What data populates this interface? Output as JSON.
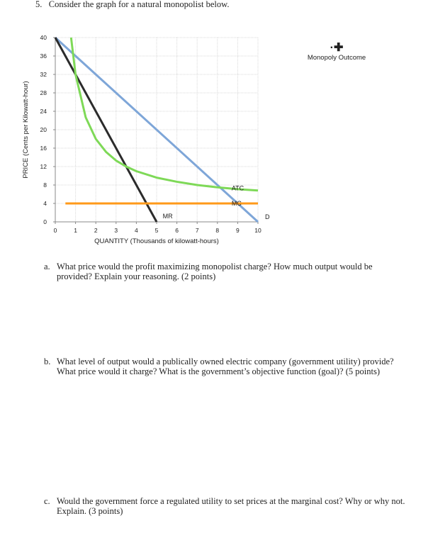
{
  "question": {
    "number": "5.",
    "text": "Consider the graph for a natural monopolist below."
  },
  "legend": {
    "icon": "plus-marker-icon",
    "label": "Monopoly Outcome"
  },
  "parts": [
    {
      "letter": "a.",
      "text": "What price would the profit maximizing monopolist charge? How much output would be provided? Explain your reasoning. (2 points)"
    },
    {
      "letter": "b.",
      "text": "What level of output would a publically owned electric company (government utility) provide? What price would it charge? What is the government’s objective function (goal)? (5 points)"
    },
    {
      "letter": "c.",
      "text": "Would the government force a regulated utility to set prices at the marginal cost? Why or why not. Explain. (3 points)"
    }
  ],
  "chart_data": {
    "type": "line",
    "xlabel": "QUANTITY (Thousands of kilowatt-hours)",
    "ylabel": "PRICE (Cents per Kilowatt-hour)",
    "xlim": [
      0,
      10
    ],
    "ylim": [
      0,
      40
    ],
    "xticks": [
      0,
      1,
      2,
      3,
      4,
      5,
      6,
      7,
      8,
      9,
      10
    ],
    "yticks": [
      0,
      4,
      8,
      12,
      16,
      20,
      24,
      28,
      32,
      36,
      40
    ],
    "grid": true,
    "series": [
      {
        "name": "D",
        "color": "#7ea6d8",
        "x": [
          0,
          10
        ],
        "y": [
          40,
          0
        ]
      },
      {
        "name": "MR",
        "color": "#2b2b2b",
        "x": [
          0,
          5
        ],
        "y": [
          40,
          0
        ]
      },
      {
        "name": "ATC",
        "color": "#7ed957",
        "x": [
          0.78,
          1,
          1.5,
          2,
          2.5,
          3,
          3.5,
          4,
          5,
          6,
          7,
          8,
          9,
          10
        ],
        "y": [
          40,
          32,
          22.7,
          18,
          15.2,
          13.3,
          12,
          11,
          9.6,
          8.7,
          8,
          7.5,
          7.1,
          6.8
        ]
      },
      {
        "name": "MC",
        "color": "#ff9a1a",
        "x": [
          0.5,
          10
        ],
        "y": [
          4,
          4
        ]
      }
    ]
  }
}
